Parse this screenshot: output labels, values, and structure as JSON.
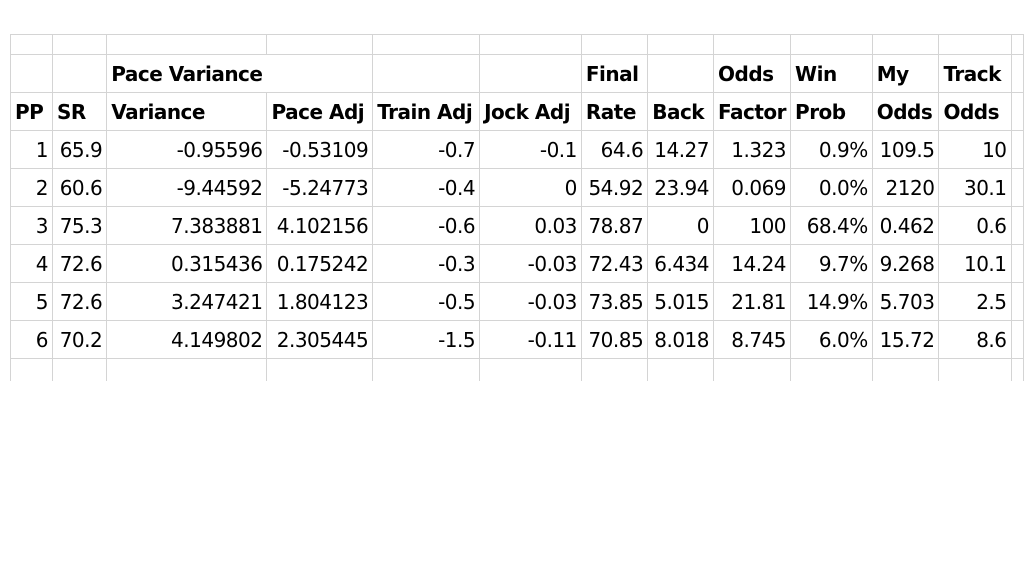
{
  "sheet": {
    "headers": {
      "row1": {
        "c2": "Pace Variance",
        "c6": "Final",
        "c8": "Odds",
        "c9": "Win",
        "c10": "My",
        "c11": "Track"
      },
      "row2": {
        "c0": "PP",
        "c1": "SR",
        "c2": "Variance",
        "c3": "Pace Adj",
        "c4": "Train Adj",
        "c5": "Jock Adj",
        "c6": "Rate",
        "c7": "Back",
        "c8": "Factor",
        "c9": "Prob",
        "c10": "Odds",
        "c11": "Odds"
      }
    },
    "rows": [
      [
        "1",
        "65.9",
        "-0.95596",
        "-0.53109",
        "-0.7",
        "-0.1",
        "64.6",
        "14.27",
        "1.323",
        "0.9%",
        "109.5",
        "10"
      ],
      [
        "2",
        "60.6",
        "-9.44592",
        "-5.24773",
        "-0.4",
        "0",
        "54.92",
        "23.94",
        "0.069",
        "0.0%",
        "2120",
        "30.1"
      ],
      [
        "3",
        "75.3",
        "7.383881",
        "4.102156",
        "-0.6",
        "0.03",
        "78.87",
        "0",
        "100",
        "68.4%",
        "0.462",
        "0.6"
      ],
      [
        "4",
        "72.6",
        "0.315436",
        "0.175242",
        "-0.3",
        "-0.03",
        "72.43",
        "6.434",
        "14.24",
        "9.7%",
        "9.268",
        "10.1"
      ],
      [
        "5",
        "72.6",
        "3.247421",
        "1.804123",
        "-0.5",
        "-0.03",
        "73.85",
        "5.015",
        "21.81",
        "14.9%",
        "5.703",
        "2.5"
      ],
      [
        "6",
        "70.2",
        "4.149802",
        "2.305445",
        "-1.5",
        "-0.11",
        "70.85",
        "8.018",
        "8.745",
        "6.0%",
        "15.72",
        "8.6"
      ]
    ]
  }
}
